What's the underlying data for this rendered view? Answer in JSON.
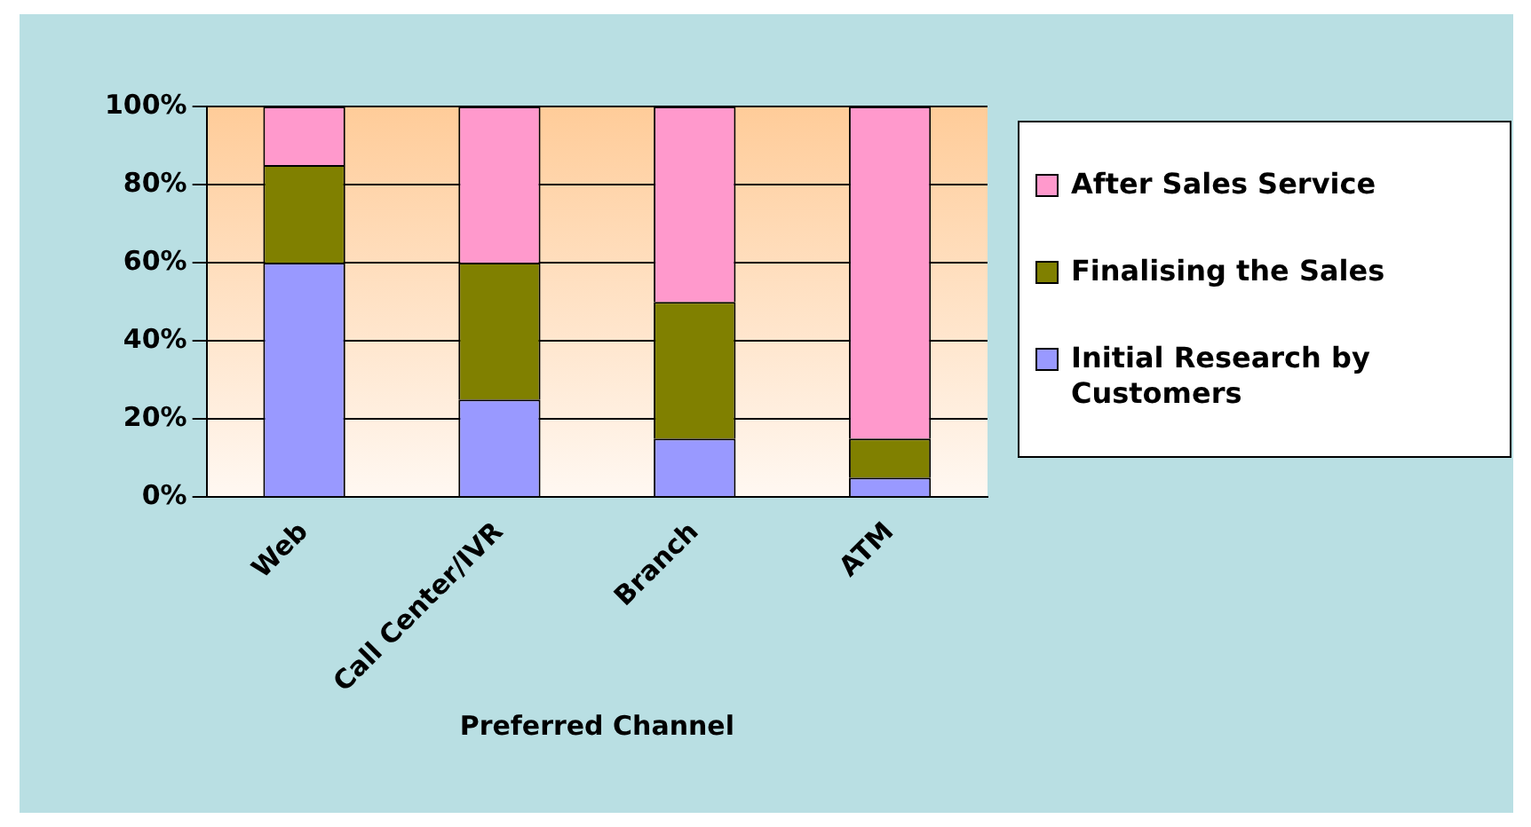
{
  "chart_data": {
    "type": "bar",
    "stacked": true,
    "xlabel": "Preferred Channel",
    "categories": [
      "Web",
      "Call Center/IVR",
      "Branch",
      "ATM"
    ],
    "series": [
      {
        "name": "Initial Research by Customers",
        "color": "#9999ff",
        "values": [
          60,
          25,
          15,
          5
        ]
      },
      {
        "name": "Finalising the Sales",
        "color": "#808000",
        "values": [
          25,
          35,
          35,
          10
        ]
      },
      {
        "name": "After Sales Service",
        "color": "#ff99cc",
        "values": [
          15,
          40,
          50,
          85
        ]
      }
    ],
    "ylim": [
      0,
      100
    ],
    "yticks": [
      {
        "value": 0,
        "label": "0%"
      },
      {
        "value": 20,
        "label": "20%"
      },
      {
        "value": 40,
        "label": "40%"
      },
      {
        "value": 60,
        "label": "60%"
      },
      {
        "value": 80,
        "label": "80%"
      },
      {
        "value": 100,
        "label": "100%"
      }
    ],
    "grid": "y",
    "legend": "right"
  }
}
